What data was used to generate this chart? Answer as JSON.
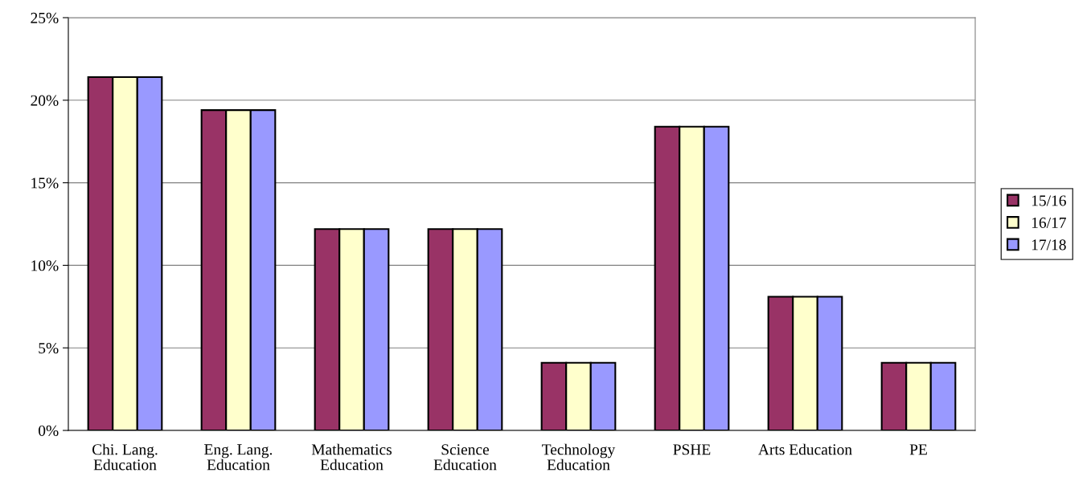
{
  "chart_data": {
    "type": "bar",
    "categories": [
      "Chi. Lang.\nEducation",
      "Eng. Lang.\nEducation",
      "Mathematics\nEducation",
      "Science\nEducation",
      "Technology\nEducation",
      "PSHE",
      "Arts Education",
      "PE"
    ],
    "series": [
      {
        "name": "15/16",
        "color": "#993366",
        "values": [
          21.4,
          19.4,
          12.2,
          12.2,
          4.1,
          18.4,
          8.1,
          4.1
        ]
      },
      {
        "name": "16/17",
        "color": "#ffffcc",
        "values": [
          21.4,
          19.4,
          12.2,
          12.2,
          4.1,
          18.4,
          8.1,
          4.1
        ]
      },
      {
        "name": "17/18",
        "color": "#9999ff",
        "values": [
          21.4,
          19.4,
          12.2,
          12.2,
          4.1,
          18.4,
          8.1,
          4.1
        ]
      }
    ],
    "ylim": [
      0,
      25
    ],
    "yticks": [
      {
        "value": 0,
        "label": "0%"
      },
      {
        "value": 5,
        "label": "5%"
      },
      {
        "value": 10,
        "label": "10%"
      },
      {
        "value": 15,
        "label": "15%"
      },
      {
        "value": 20,
        "label": "20%"
      },
      {
        "value": 25,
        "label": "25%"
      }
    ],
    "grid": "y",
    "legend": "right"
  }
}
